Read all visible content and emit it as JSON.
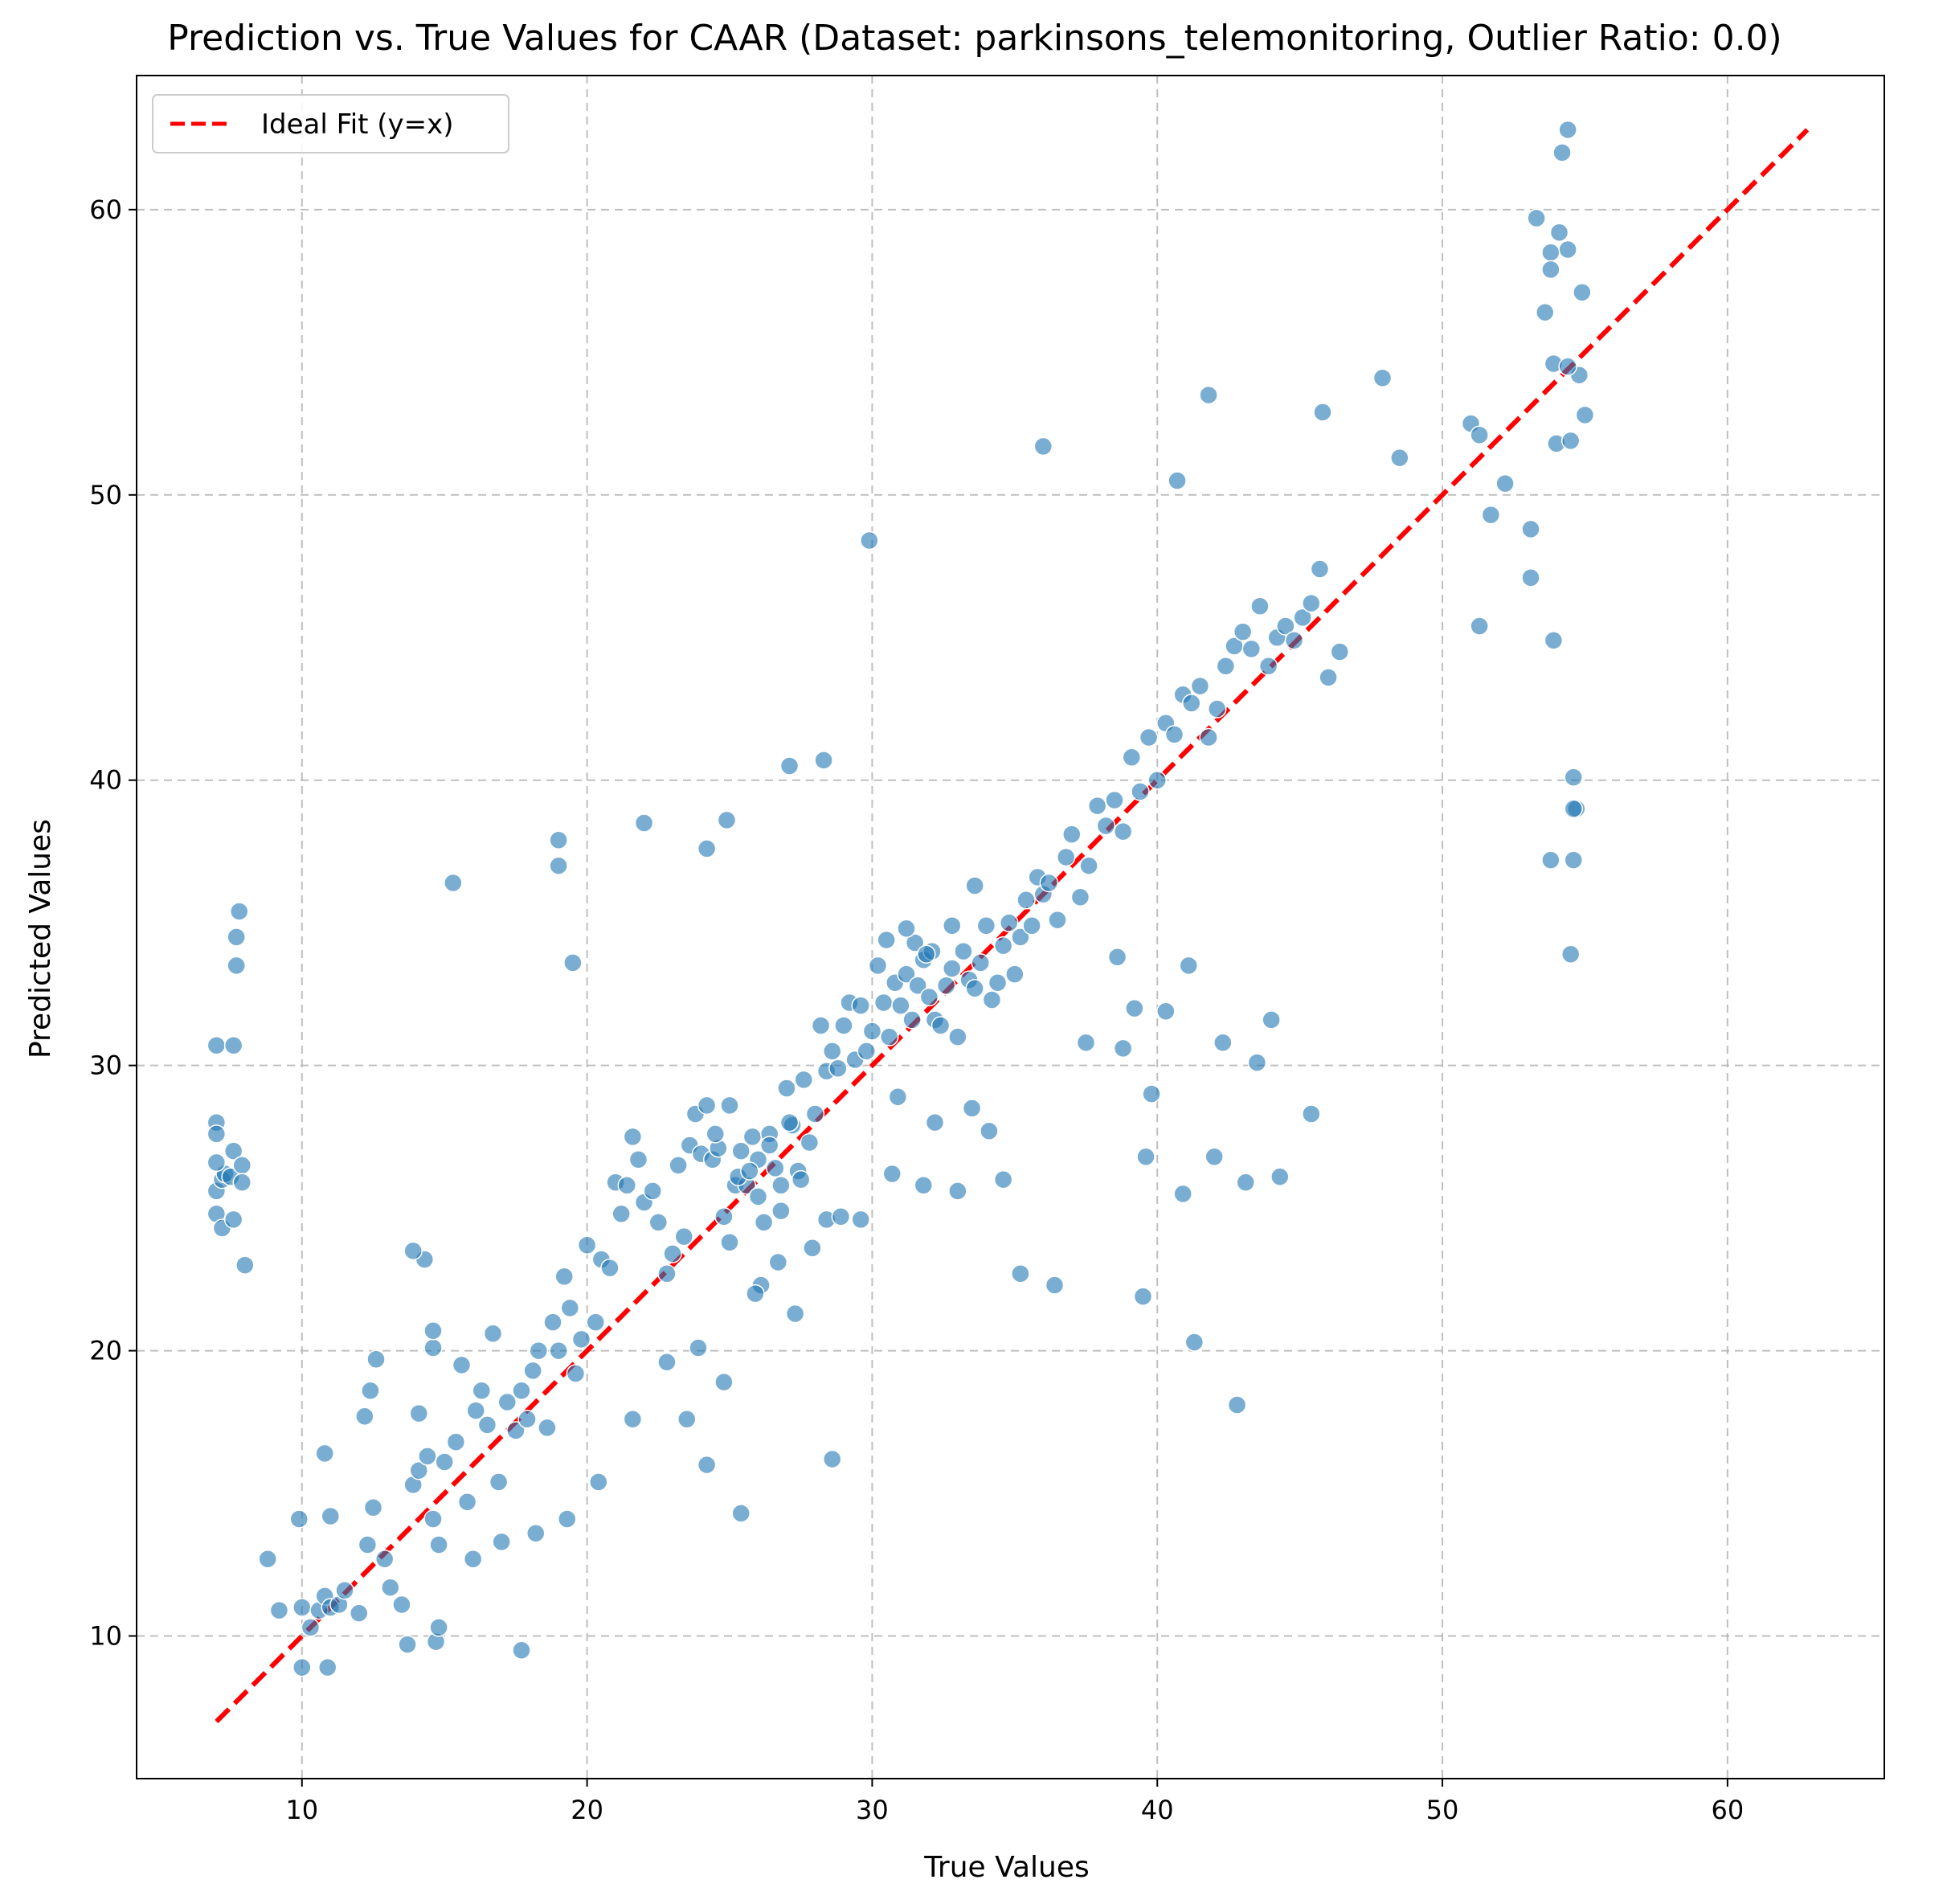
{
  "chart_data": {
    "type": "scatter",
    "title": "Prediction vs. True Values for CAAR (Dataset: parkinsons_telemonitoring, Outlier Ratio: 0.0)",
    "xlabel": "True Values",
    "ylabel": "Predicted Values",
    "xlim": [
      4.2,
      65.5
    ],
    "ylim": [
      5.0,
      64.7
    ],
    "xticks": [
      10,
      20,
      30,
      40,
      50,
      60
    ],
    "yticks": [
      10,
      20,
      30,
      40,
      50,
      60
    ],
    "grid": true,
    "legend_position": "top-left",
    "colors": {
      "points": "#1f77b4",
      "ideal": "#ff0000",
      "grid": "#b0b0b0"
    },
    "ideal_line": {
      "name": "Ideal Fit (y=x)",
      "x": [
        7.0,
        62.8
      ],
      "y": [
        7.0,
        62.8
      ]
    },
    "series": [
      {
        "x": [
          7.0,
          7.0,
          7.0,
          7.0,
          7.0,
          7.2,
          7.2,
          7.3,
          7.5,
          7.6,
          7.6,
          7.7,
          7.7,
          7.8,
          7.9,
          7.9,
          8.0,
          7.0,
          7.6,
          8.8,
          9.2,
          10.0,
          10.3,
          10.6,
          10.8,
          11.0,
          11.3,
          11.5,
          12.0,
          12.3,
          12.5,
          12.6,
          12.9,
          13.1,
          10.0,
          9.9,
          10.9,
          10.8,
          12.4,
          12.2,
          13.5,
          13.7,
          14.1,
          14.3,
          14.6,
          14.6,
          14.7,
          14.8,
          15.0,
          13.9,
          14.1,
          14.4,
          14.8,
          15.4,
          15.6,
          15.8,
          16.1,
          16.3,
          16.5,
          16.7,
          16.9,
          17.2,
          17.5,
          17.7,
          17.9,
          18.1,
          18.3,
          18.6,
          18.8,
          19.0,
          19.2,
          19.4,
          19.6,
          19.8,
          20.0,
          20.3,
          20.5,
          20.8,
          21.0,
          21.2,
          21.4,
          21.6,
          21.8,
          22.0,
          22.3,
          22.5,
          22.8,
          23.0,
          23.2,
          23.4,
          23.6,
          23.8,
          24.0,
          24.2,
          24.4,
          24.6,
          24.8,
          25.0,
          25.2,
          25.4,
          25.6,
          25.8,
          26.0,
          26.2,
          26.4,
          26.6,
          26.8,
          27.0,
          27.2,
          27.4,
          27.6,
          27.8,
          28.0,
          28.2,
          28.4,
          28.6,
          28.8,
          29.0,
          29.2,
          29.4,
          29.6,
          29.8,
          30.0,
          30.2,
          30.4,
          30.6,
          30.8,
          31.0,
          31.2,
          31.4,
          31.6,
          31.8,
          32.0,
          32.2,
          32.4,
          32.6,
          32.8,
          33.0,
          33.2,
          33.4,
          33.6,
          33.8,
          34.0,
          34.2,
          34.4,
          34.6,
          34.8,
          35.0,
          35.2,
          35.4,
          35.6,
          35.8,
          36.0,
          36.2,
          36.5,
          36.8,
          37.0,
          37.3,
          37.6,
          37.9,
          38.2,
          38.5,
          38.8,
          39.1,
          39.4,
          39.7,
          40.0,
          40.3,
          40.6,
          40.9,
          41.2,
          41.5,
          41.8,
          42.1,
          42.4,
          42.7,
          43.0,
          43.3,
          43.6,
          43.9,
          44.2,
          44.5,
          44.8,
          45.1,
          45.4,
          45.7,
          46.0,
          46.4,
          15.3,
          19.0,
          19.0,
          19.5,
          22.0,
          24.2,
          24.9,
          27.1,
          28.3,
          29.9,
          36.0,
          41.8,
          40.7,
          45.8,
          47.9,
          48.5,
          51.0,
          51.3,
          51.7,
          52.2,
          53.1,
          53.1,
          53.3,
          53.6,
          53.8,
          53.8,
          53.9,
          54.0,
          54.1,
          54.2,
          54.4,
          54.4,
          54.5,
          54.6,
          54.7,
          54.8,
          54.9,
          55.0,
          53.8,
          54.6,
          54.6,
          54.5,
          54.4,
          51.3,
          53.9,
          41.3,
          42.8,
          39.5,
          28.6,
          25.4,
          24.2,
          17.7,
          11.0,
          14.6,
          13.9,
          16.0,
          17.0,
          18.2,
          19.3,
          20.4,
          21.6,
          22.8,
          23.9,
          25.0,
          26.1,
          27.3,
          28.4,
          29.6,
          30.7,
          31.8,
          33.0,
          34.1,
          35.2,
          36.4,
          37.5,
          38.6,
          39.8,
          40.9,
          42.0,
          43.1,
          44.3,
          45.4,
          23.5,
          24.8,
          25.9,
          26.7,
          27.9,
          28.9,
          30.9,
          32.2,
          33.5,
          34.6,
          25.3,
          26.0,
          26.8,
          27.5,
          24.5,
          25.7,
          26.4,
          27.1,
          31.5,
          32.1,
          32.8,
          33.6,
          30.5,
          31.2,
          31.9,
          39.2,
          40.3,
          41.1,
          42.3,
          43.5,
          44.0,
          38.8,
          39.6
        ],
        "y": [
          30.7,
          28.0,
          27.6,
          25.6,
          24.8,
          24.3,
          26.0,
          26.2,
          26.1,
          27.0,
          30.7,
          33.5,
          34.5,
          35.4,
          26.5,
          25.9,
          23.0,
          26.6,
          24.6,
          12.7,
          10.9,
          11.0,
          10.3,
          10.9,
          11.4,
          11.0,
          11.1,
          11.6,
          10.8,
          13.2,
          14.5,
          19.7,
          12.7,
          11.7,
          8.9,
          14.1,
          8.9,
          16.4,
          18.6,
          17.7,
          11.1,
          9.7,
          17.8,
          23.2,
          20.1,
          20.7,
          9.8,
          10.3,
          16.1,
          15.3,
          15.8,
          16.3,
          13.2,
          16.8,
          19.5,
          14.7,
          17.9,
          18.6,
          17.4,
          20.6,
          15.4,
          18.2,
          17.2,
          18.6,
          17.6,
          19.3,
          20.0,
          17.3,
          21.0,
          20.0,
          22.6,
          21.5,
          19.2,
          20.4,
          23.7,
          21.0,
          23.2,
          22.9,
          25.9,
          24.8,
          25.8,
          27.5,
          26.7,
          25.2,
          25.6,
          24.5,
          22.7,
          23.4,
          26.5,
          24.0,
          27.2,
          28.3,
          26.9,
          28.6,
          26.7,
          27.1,
          24.7,
          28.6,
          25.8,
          27.0,
          25.8,
          27.5,
          26.7,
          24.5,
          27.6,
          26.4,
          25.8,
          29.2,
          27.9,
          26.3,
          29.5,
          27.3,
          28.3,
          31.4,
          29.8,
          30.5,
          29.9,
          31.4,
          32.2,
          30.2,
          32.1,
          30.5,
          31.2,
          33.5,
          32.2,
          31.0,
          32.9,
          32.1,
          33.2,
          31.6,
          32.8,
          33.7,
          32.4,
          31.6,
          31.4,
          32.8,
          33.4,
          31.0,
          34.0,
          33.0,
          32.7,
          33.6,
          34.9,
          32.3,
          32.9,
          34.2,
          35.0,
          33.2,
          34.5,
          35.8,
          34.9,
          36.6,
          36.0,
          36.4,
          35.1,
          37.3,
          38.1,
          35.9,
          37.0,
          39.1,
          38.4,
          39.3,
          38.2,
          40.8,
          39.6,
          41.5,
          40.0,
          42.0,
          41.6,
          43.0,
          42.7,
          43.3,
          41.5,
          42.5,
          44.0,
          44.7,
          45.2,
          44.6,
          46.1,
          44.0,
          45.0,
          45.4,
          44.9,
          45.7,
          46.2,
          47.4,
          43.6,
          44.5,
          36.4,
          37.9,
          37.0,
          33.6,
          38.5,
          37.6,
          38.6,
          40.5,
          40.7,
          48.4,
          51.7,
          53.5,
          50.5,
          52.9,
          54.1,
          51.3,
          52.5,
          52.1,
          49.3,
          50.4,
          47.1,
          48.8,
          59.7,
          56.4,
          58.5,
          57.9,
          54.6,
          51.8,
          59.2,
          62.0,
          62.8,
          58.6,
          51.9,
          40.1,
          39.0,
          54.2,
          57.1,
          52.8,
          37.2,
          39.0,
          37.2,
          33.9,
          54.5,
          45.4,
          44.9,
          20.3,
          18.1,
          21.9,
          16.2,
          14.3,
          16.0,
          9.5,
          14.2,
          14.1,
          23.5,
          12.7,
          13.3,
          13.6,
          14.1,
          15.4,
          17.6,
          19.6,
          20.1,
          23.8,
          22.3,
          21.3,
          24.6,
          24.6,
          26.2,
          25.8,
          25.6,
          27.7,
          22.7,
          22.3,
          30.8,
          33.8,
          29.0,
          25.5,
          26.8,
          25.9,
          26.1,
          28.3,
          17.6,
          18.9,
          22.0,
          23.1,
          23.6,
          24.7,
          28.9,
          28.0,
          28.5,
          26.0,
          26.1,
          25.4,
          24.9,
          26.0,
          27.6,
          26.3,
          27.2,
          28.0,
          34.3,
          34.0,
          34.9,
          36.3,
          34.4,
          34.8,
          33.9,
          32.0,
          31.9,
          33.5,
          30.8,
          30.1,
          31.6,
          30.6,
          26.8
        ]
      }
    ]
  }
}
